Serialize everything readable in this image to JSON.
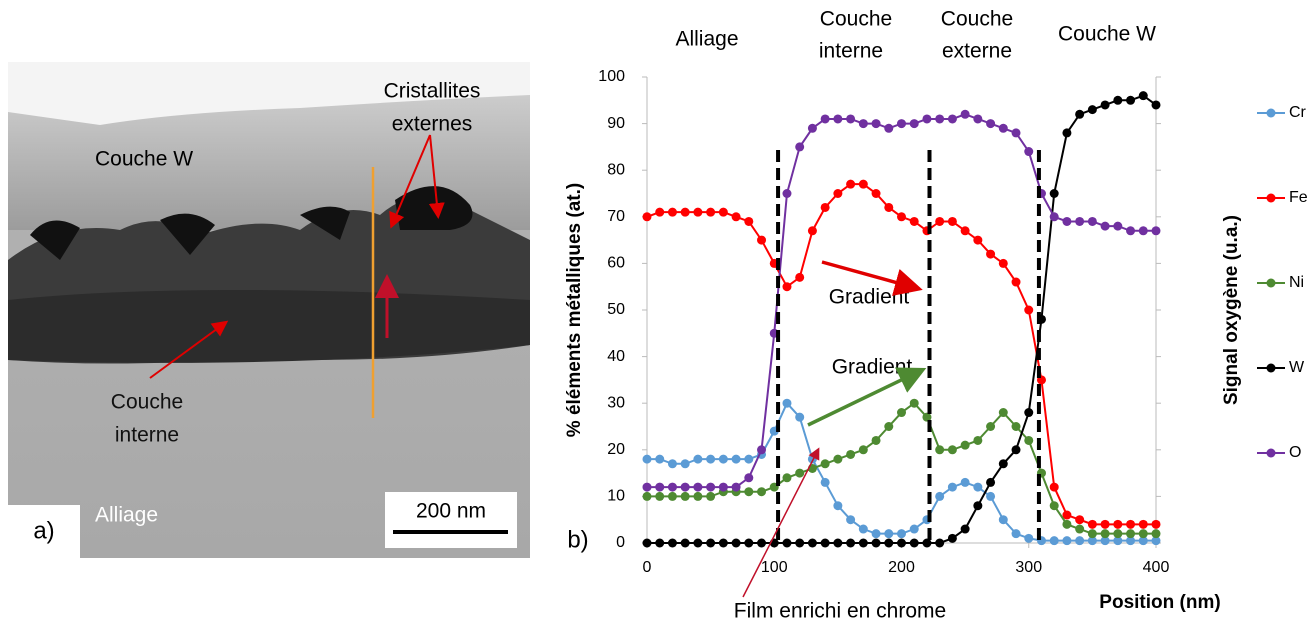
{
  "figure": {
    "panel_a": {
      "label": "a)",
      "scale_bar": "200 nm",
      "couche_w": "Couche W",
      "cristallites": [
        "Cristallites",
        "externes"
      ],
      "couche_interne": [
        "Couche",
        "interne"
      ],
      "alliage": "Alliage"
    }
  },
  "chart_data": {
    "type": "line",
    "panel_label": "b)",
    "xlabel": "Position (nm)",
    "ylabel": "% éléments métalliques (at.)",
    "y2label": "Signal oxygène (u.a.)",
    "zones": [
      "Alliage",
      [
        "Couche",
        "interne"
      ],
      [
        "Couche",
        "externe"
      ],
      "Couche W"
    ],
    "annotations": [
      "Gradient",
      "Gradient",
      "Film enrichi en chrome"
    ],
    "dividers": [
      103,
      222,
      308
    ],
    "xlim": [
      0,
      400
    ],
    "xticks": [
      0,
      100,
      200,
      300,
      400
    ],
    "ylim": [
      0,
      100
    ],
    "yticks": [
      0,
      10,
      20,
      30,
      40,
      50,
      60,
      70,
      80,
      90,
      100
    ],
    "legend": "right",
    "x": [
      0,
      10,
      20,
      30,
      40,
      50,
      60,
      70,
      80,
      90,
      100,
      110,
      120,
      130,
      140,
      150,
      160,
      170,
      180,
      190,
      200,
      210,
      220,
      230,
      240,
      250,
      260,
      270,
      280,
      290,
      300,
      310,
      320,
      330,
      340,
      350,
      360,
      370,
      380,
      390,
      400
    ],
    "series": [
      {
        "name": "Cr",
        "color": "#5b9bd5",
        "values": [
          18,
          18,
          17,
          17,
          18,
          18,
          18,
          18,
          18,
          19,
          24,
          30,
          27,
          18,
          13,
          8,
          5,
          3,
          2,
          2,
          2,
          3,
          5,
          10,
          12,
          13,
          12,
          10,
          5,
          2,
          1,
          0.5,
          0.5,
          0.5,
          0.5,
          0.5,
          0.5,
          0.5,
          0.5,
          0.5,
          0.5
        ]
      },
      {
        "name": "Fe",
        "color": "#ff0000",
        "values": [
          70,
          71,
          71,
          71,
          71,
          71,
          71,
          70,
          69,
          65,
          60,
          55,
          57,
          67,
          72,
          75,
          77,
          77,
          75,
          72,
          70,
          69,
          67,
          69,
          69,
          67,
          65,
          62,
          60,
          56,
          50,
          35,
          12,
          6,
          5,
          4,
          4,
          4,
          4,
          4,
          4
        ]
      },
      {
        "name": "Ni",
        "color": "#4e8a32",
        "values": [
          10,
          10,
          10,
          10,
          10,
          10,
          11,
          11,
          11,
          11,
          12,
          14,
          15,
          16,
          17,
          18,
          19,
          20,
          22,
          25,
          28,
          30,
          27,
          20,
          20,
          21,
          22,
          25,
          28,
          25,
          22,
          15,
          8,
          4,
          3,
          2,
          2,
          2,
          2,
          2,
          2
        ]
      },
      {
        "name": "W",
        "color": "#000000",
        "values": [
          0,
          0,
          0,
          0,
          0,
          0,
          0,
          0,
          0,
          0,
          0,
          0,
          0,
          0,
          0,
          0,
          0,
          0,
          0,
          0,
          0,
          0,
          0,
          0,
          1,
          3,
          8,
          13,
          17,
          20,
          28,
          48,
          75,
          88,
          92,
          93,
          94,
          95,
          95,
          96,
          94
        ]
      },
      {
        "name": "O",
        "color": "#7030a0",
        "values": [
          12,
          12,
          12,
          12,
          12,
          12,
          12,
          12,
          14,
          20,
          45,
          75,
          85,
          89,
          91,
          91,
          91,
          90,
          90,
          89,
          90,
          90,
          91,
          91,
          91,
          92,
          91,
          90,
          89,
          88,
          84,
          75,
          70,
          69,
          69,
          69,
          68,
          68,
          67,
          67,
          67
        ]
      }
    ]
  }
}
